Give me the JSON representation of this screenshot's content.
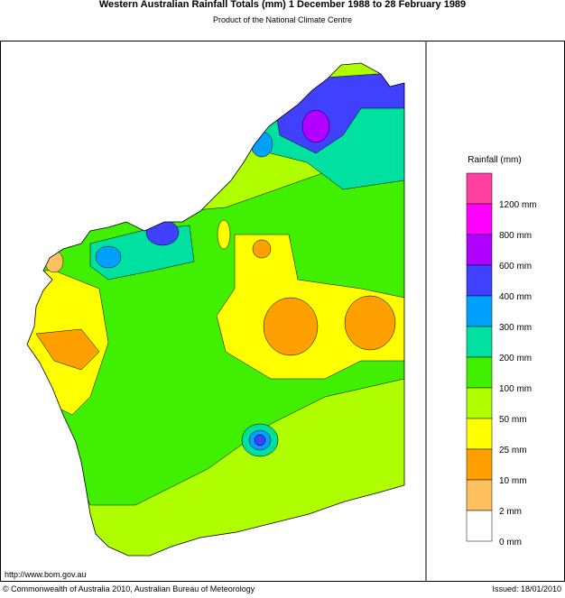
{
  "header": {
    "title": "Western Australian Rainfall Totals (mm) 1 December 1988 to 28 February 1989",
    "subtitle": "Product of the National Climate Centre"
  },
  "legend": {
    "title": "Rainfall (mm)",
    "labels": [
      "1200 mm",
      "800 mm",
      "600 mm",
      "400 mm",
      "300 mm",
      "200 mm",
      "100 mm",
      "50 mm",
      "25 mm",
      "10 mm",
      "2 mm",
      "0 mm"
    ]
  },
  "footer": {
    "url": "http://www.bom.gov.au",
    "copyright": "© Commonwealth of Australia 2010, Australian Bureau of Meteorology",
    "issued": "Issued: 18/01/2010"
  }
}
